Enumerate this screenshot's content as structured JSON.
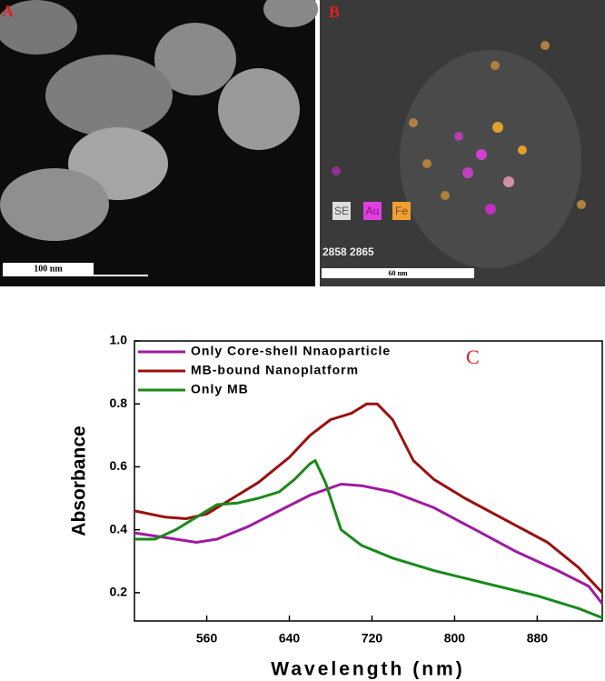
{
  "panels": {
    "a": {
      "label": "A",
      "scale": "100 nm"
    },
    "b": {
      "label": "B",
      "channels": [
        "SE",
        "Au",
        "Fe"
      ],
      "code": "2858 2865",
      "scale": "60 nm"
    }
  },
  "chart_data": {
    "type": "line",
    "label": "C",
    "x_label": "Wavelength (nm)",
    "y_label": "Absorbance",
    "xlim": [
      490,
      943
    ],
    "ylim": [
      0.11,
      1.0
    ],
    "xticks": [
      560,
      640,
      720,
      800,
      880
    ],
    "yticks": [
      0.2,
      0.4,
      0.6,
      0.8,
      {
        "value": 1,
        "label": "1.0"
      }
    ],
    "legend": "top-left",
    "series": [
      {
        "name": "Only Core-shell Nnaoparticle",
        "color": "#a01aa0",
        "x": [
          490,
          530,
          550,
          570,
          600,
          630,
          660,
          690,
          710,
          740,
          780,
          820,
          860,
          900,
          930,
          943
        ],
        "values": [
          0.39,
          0.37,
          0.36,
          0.37,
          0.41,
          0.46,
          0.51,
          0.545,
          0.54,
          0.52,
          0.47,
          0.4,
          0.33,
          0.27,
          0.22,
          0.165
        ]
      },
      {
        "name": "MB-bound Nanoplatform",
        "color": "#9a1010",
        "x": [
          490,
          520,
          540,
          560,
          580,
          610,
          640,
          660,
          680,
          700,
          715,
          725,
          740,
          760,
          780,
          810,
          850,
          890,
          920,
          943
        ],
        "values": [
          0.46,
          0.44,
          0.435,
          0.45,
          0.49,
          0.55,
          0.63,
          0.7,
          0.75,
          0.77,
          0.8,
          0.8,
          0.75,
          0.62,
          0.56,
          0.5,
          0.43,
          0.36,
          0.28,
          0.2
        ]
      },
      {
        "name": "Only MB",
        "color": "#1a8a1a",
        "x": [
          490,
          510,
          530,
          550,
          570,
          590,
          610,
          630,
          645,
          660,
          665,
          675,
          690,
          710,
          740,
          780,
          830,
          880,
          920,
          943
        ],
        "values": [
          0.37,
          0.37,
          0.4,
          0.44,
          0.48,
          0.485,
          0.5,
          0.52,
          0.56,
          0.61,
          0.62,
          0.55,
          0.4,
          0.35,
          0.31,
          0.27,
          0.23,
          0.19,
          0.15,
          0.12
        ]
      }
    ]
  }
}
